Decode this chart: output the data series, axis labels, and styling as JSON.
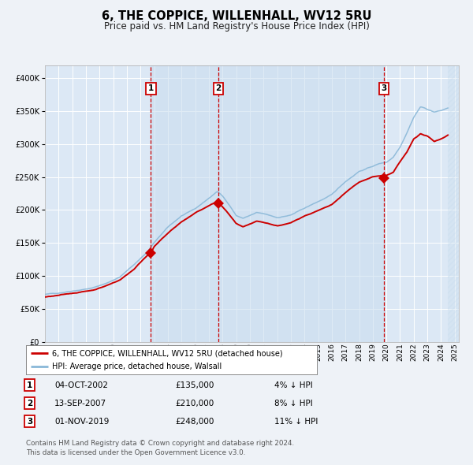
{
  "title": "6, THE COPPICE, WILLENHALL, WV12 5RU",
  "subtitle": "Price paid vs. HM Land Registry's House Price Index (HPI)",
  "title_fontsize": 10.5,
  "subtitle_fontsize": 8.5,
  "ylim": [
    0,
    420000
  ],
  "yticks": [
    0,
    50000,
    100000,
    150000,
    200000,
    250000,
    300000,
    350000,
    400000
  ],
  "ytick_labels": [
    "£0",
    "£50K",
    "£100K",
    "£150K",
    "£200K",
    "£250K",
    "£300K",
    "£350K",
    "£400K"
  ],
  "background_color": "#eef2f7",
  "plot_bg_color": "#dce8f5",
  "hpi_line_color": "#8ab8d8",
  "price_line_color": "#cc0000",
  "sale_marker_color": "#cc0000",
  "grid_color": "#ffffff",
  "vline_color": "#cc0000",
  "sales": [
    {
      "date_label": "04-OCT-2002",
      "date_x": 2002.75,
      "price": 135000,
      "label": "1"
    },
    {
      "date_label": "13-SEP-2007",
      "date_x": 2007.7,
      "price": 210000,
      "label": "2"
    },
    {
      "date_label": "01-NOV-2019",
      "date_x": 2019.83,
      "price": 248000,
      "label": "3"
    }
  ],
  "xmin": 1995.0,
  "xmax": 2025.3,
  "hatch_start": 2024.5,
  "legend_entries": [
    {
      "label": "6, THE COPPICE, WILLENHALL, WV12 5RU (detached house)",
      "color": "#cc0000"
    },
    {
      "label": "HPI: Average price, detached house, Walsall",
      "color": "#8ab8d8"
    }
  ],
  "footer_text": "Contains HM Land Registry data © Crown copyright and database right 2024.\nThis data is licensed under the Open Government Licence v3.0.",
  "table_rows": [
    {
      "num": "1",
      "date": "04-OCT-2002",
      "price": "£135,000",
      "pct": "4% ↓ HPI"
    },
    {
      "num": "2",
      "date": "13-SEP-2007",
      "price": "£210,000",
      "pct": "8% ↓ HPI"
    },
    {
      "num": "3",
      "date": "01-NOV-2019",
      "price": "£248,000",
      "pct": "11% ↓ HPI"
    }
  ],
  "hpi_anchors": [
    [
      1995.0,
      72000
    ],
    [
      1996.0,
      74000
    ],
    [
      1997.0,
      78000
    ],
    [
      1998.5,
      83000
    ],
    [
      1999.5,
      90000
    ],
    [
      2000.5,
      100000
    ],
    [
      2001.5,
      118000
    ],
    [
      2002.5,
      138000
    ],
    [
      2003.0,
      152000
    ],
    [
      2004.0,
      175000
    ],
    [
      2005.0,
      192000
    ],
    [
      2006.0,
      202000
    ],
    [
      2007.0,
      218000
    ],
    [
      2007.6,
      228000
    ],
    [
      2008.0,
      222000
    ],
    [
      2008.5,
      208000
    ],
    [
      2009.0,
      192000
    ],
    [
      2009.5,
      188000
    ],
    [
      2010.0,
      192000
    ],
    [
      2010.5,
      196000
    ],
    [
      2011.0,
      194000
    ],
    [
      2012.0,
      188000
    ],
    [
      2013.0,
      192000
    ],
    [
      2014.0,
      202000
    ],
    [
      2015.0,
      212000
    ],
    [
      2016.0,
      222000
    ],
    [
      2017.0,
      242000
    ],
    [
      2018.0,
      258000
    ],
    [
      2019.0,
      266000
    ],
    [
      2019.5,
      270000
    ],
    [
      2020.0,
      272000
    ],
    [
      2020.5,
      280000
    ],
    [
      2021.0,
      296000
    ],
    [
      2021.5,
      318000
    ],
    [
      2022.0,
      342000
    ],
    [
      2022.5,
      358000
    ],
    [
      2023.0,
      354000
    ],
    [
      2023.5,
      350000
    ],
    [
      2024.0,
      352000
    ],
    [
      2024.5,
      356000
    ]
  ],
  "price_anchors": [
    [
      1995.0,
      68000
    ],
    [
      1996.0,
      70000
    ],
    [
      1997.0,
      73000
    ],
    [
      1998.5,
      78000
    ],
    [
      1999.5,
      85000
    ],
    [
      2000.5,
      94000
    ],
    [
      2001.5,
      110000
    ],
    [
      2002.5,
      132000
    ],
    [
      2002.75,
      135000
    ],
    [
      2003.0,
      145000
    ],
    [
      2004.0,
      165000
    ],
    [
      2005.0,
      182000
    ],
    [
      2006.0,
      195000
    ],
    [
      2007.0,
      206000
    ],
    [
      2007.6,
      212000
    ],
    [
      2007.7,
      210000
    ],
    [
      2008.0,
      204000
    ],
    [
      2008.5,
      192000
    ],
    [
      2009.0,
      178000
    ],
    [
      2009.5,
      172000
    ],
    [
      2010.0,
      176000
    ],
    [
      2010.5,
      180000
    ],
    [
      2011.0,
      178000
    ],
    [
      2012.0,
      173000
    ],
    [
      2013.0,
      177000
    ],
    [
      2014.0,
      188000
    ],
    [
      2015.0,
      196000
    ],
    [
      2016.0,
      204000
    ],
    [
      2017.0,
      222000
    ],
    [
      2018.0,
      238000
    ],
    [
      2019.0,
      246000
    ],
    [
      2019.83,
      248000
    ],
    [
      2020.0,
      248000
    ],
    [
      2020.5,
      252000
    ],
    [
      2021.0,
      268000
    ],
    [
      2021.5,
      282000
    ],
    [
      2022.0,
      302000
    ],
    [
      2022.5,
      310000
    ],
    [
      2023.0,
      306000
    ],
    [
      2023.5,
      298000
    ],
    [
      2024.0,
      302000
    ],
    [
      2024.5,
      308000
    ]
  ]
}
